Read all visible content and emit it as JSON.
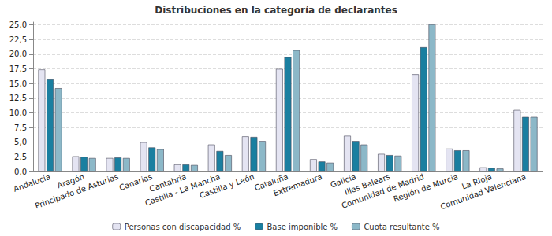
{
  "chart_data": {
    "type": "bar",
    "title": "Distribuciones en la categoría de declarantes",
    "categories": [
      "Andalucía",
      "Aragón",
      "Principado de Asturias",
      "Canarias",
      "Cantabria",
      "Castilla - La Mancha",
      "Castilla y León",
      "Cataluña",
      "Extremadura",
      "Galicia",
      "Illes Balears",
      "Comunidad de Madrid",
      "Región de Murcia",
      "La Rioja",
      "Comunidad Valenciana"
    ],
    "series": [
      {
        "name": "Personas con discapacidad %",
        "color": "#e4e4f2",
        "values": [
          17.4,
          2.6,
          2.3,
          5.0,
          1.2,
          4.6,
          6.0,
          17.5,
          2.1,
          6.1,
          3.0,
          16.6,
          3.9,
          0.7,
          10.5
        ]
      },
      {
        "name": "Base imponible %",
        "color": "#1a7fa0",
        "values": [
          15.7,
          2.5,
          2.4,
          4.1,
          1.2,
          3.5,
          5.9,
          19.5,
          1.7,
          5.2,
          2.8,
          21.2,
          3.6,
          0.6,
          9.3
        ]
      },
      {
        "name": "Cuota resultante %",
        "color": "#8cb8c8",
        "values": [
          14.2,
          2.3,
          2.3,
          3.8,
          1.1,
          2.8,
          5.2,
          20.7,
          1.5,
          4.6,
          2.7,
          25.1,
          3.6,
          0.5,
          9.3
        ]
      }
    ],
    "ylim": [
      0,
      25.5
    ],
    "yticks": [
      {
        "value": 0,
        "label": "0,0"
      },
      {
        "value": 2.5,
        "label": "2,5"
      },
      {
        "value": 5,
        "label": "5,0"
      },
      {
        "value": 7.5,
        "label": "7,5"
      },
      {
        "value": 10,
        "label": "10,0"
      },
      {
        "value": 12.5,
        "label": "12,5"
      },
      {
        "value": 15,
        "label": "15,0"
      },
      {
        "value": 17.5,
        "label": "17,5"
      },
      {
        "value": 20,
        "label": "20,0"
      },
      {
        "value": 22.5,
        "label": "22,5"
      },
      {
        "value": 25,
        "label": "25,0"
      }
    ],
    "grid": true,
    "legend": "bottom"
  }
}
